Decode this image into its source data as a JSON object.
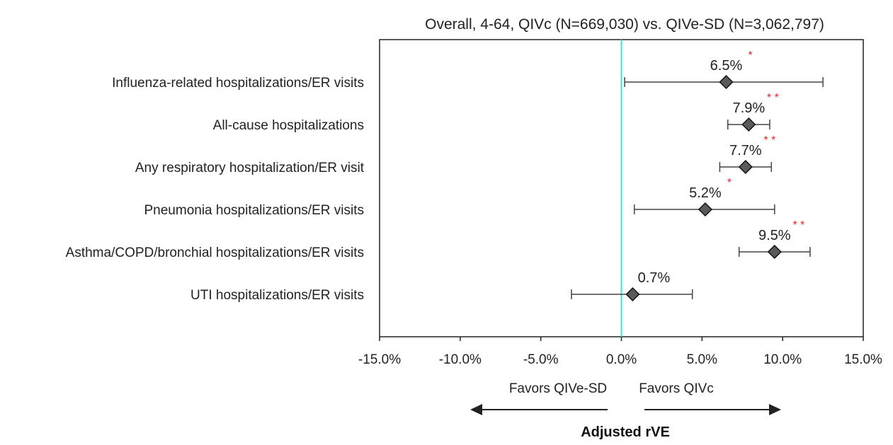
{
  "chart_data": {
    "type": "forest",
    "title": "Overall, 4-64, QIVc (N=669,030) vs. QIVe-SD (N=3,062,797)",
    "xlabel": "Adjusted rVE",
    "xlim": [
      -15.0,
      15.0
    ],
    "x_ticks": [
      "-15.0%",
      "-10.0%",
      "-5.0%",
      "0.0%",
      "5.0%",
      "10.0%",
      "15.0%"
    ],
    "x_tick_values": [
      -15,
      -10,
      -5,
      0,
      5,
      10,
      15
    ],
    "reference_line": 0,
    "reference_color": "#40e0d0",
    "marker_color": "#5a5a5a",
    "star_color": "#e8232b",
    "rows": [
      {
        "label": "Influenza-related hospitalizations/ER visits",
        "value": 6.5,
        "low": 0.2,
        "high": 12.5,
        "value_label": "6.5%",
        "stars": "*"
      },
      {
        "label": "All-cause hospitalizations",
        "value": 7.9,
        "low": 6.6,
        "high": 9.2,
        "value_label": "7.9%",
        "stars": "**"
      },
      {
        "label": "Any respiratory hospitalization/ER visit",
        "value": 7.7,
        "low": 6.1,
        "high": 9.3,
        "value_label": "7.7%",
        "stars": "**"
      },
      {
        "label": "Pneumonia hospitalizations/ER visits",
        "value": 5.2,
        "low": 0.8,
        "high": 9.5,
        "value_label": "5.2%",
        "stars": "*"
      },
      {
        "label": "Asthma/COPD/bronchial hospitalizations/ER visits",
        "value": 9.5,
        "low": 7.3,
        "high": 11.7,
        "value_label": "9.5%",
        "stars": "**"
      },
      {
        "label": "UTI hospitalizations/ER visits",
        "value": 0.7,
        "low": -3.1,
        "high": 4.4,
        "value_label": "0.7%",
        "stars": ""
      }
    ],
    "annotations": {
      "favors_left": "Favors QIVe-SD",
      "favors_right": "Favors QIVc"
    }
  }
}
